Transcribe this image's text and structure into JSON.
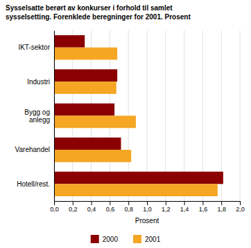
{
  "chart_data": {
    "type": "bar",
    "orientation": "horizontal",
    "title": "Sysselsatte berørt av konkurser i forhold til samlet\nsysselsetting. Forenklede beregninger for 2001. Prosent",
    "categories": [
      "IKT-sektor",
      "Industri",
      "Bygg og\nanlegg",
      "Varehandel",
      "Hotell/rest."
    ],
    "series": [
      {
        "name": "2000",
        "color": "#8B0000",
        "values": [
          0.33,
          0.68,
          0.65,
          0.72,
          1.82
        ]
      },
      {
        "name": "2001",
        "color": "#F5A623",
        "values": [
          0.68,
          0.67,
          0.88,
          0.83,
          1.76
        ]
      }
    ],
    "xlabel": "Prosent",
    "xlim": [
      0,
      2.0
    ],
    "xticks": [
      {
        "value": 0.0,
        "label": "0,0"
      },
      {
        "value": 0.2,
        "label": "0,2"
      },
      {
        "value": 0.4,
        "label": "0,4"
      },
      {
        "value": 0.6,
        "label": "0,6"
      },
      {
        "value": 0.8,
        "label": "0,8"
      },
      {
        "value": 1.0,
        "label": "1,0"
      },
      {
        "value": 1.2,
        "label": "1,2"
      },
      {
        "value": 1.4,
        "label": "1,4"
      },
      {
        "value": 1.6,
        "label": "1,6"
      },
      {
        "value": 1.8,
        "label": "1,8"
      },
      {
        "value": 2.0,
        "label": "2,0"
      }
    ],
    "grid": true,
    "legend": "bottom"
  }
}
